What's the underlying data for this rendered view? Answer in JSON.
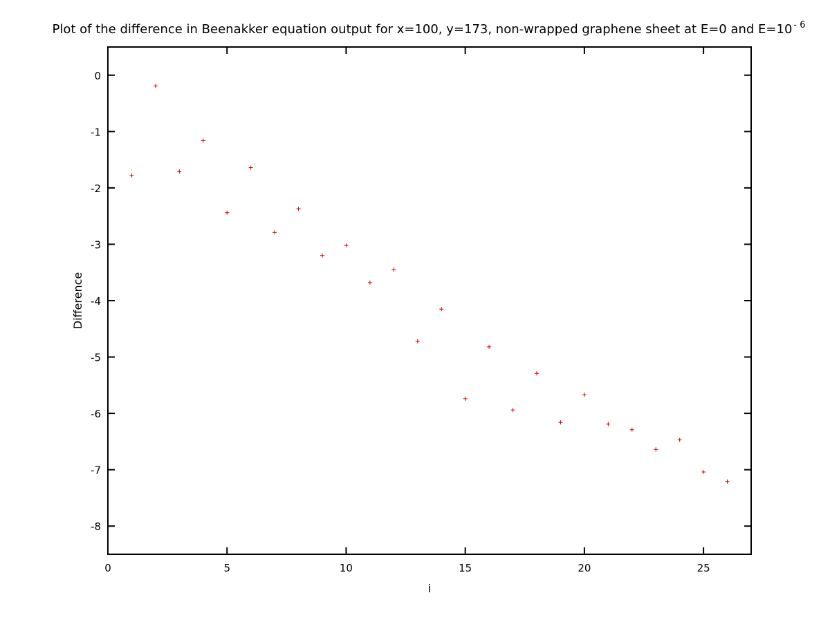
{
  "chart_data": {
    "type": "scatter",
    "title": "Plot of the difference in Beenakker equation output for x=100, y=173, non-wrapped graphene sheet at E=0 and E=10",
    "title_superscript": "- 6",
    "xlabel": "i",
    "ylabel": "Difference",
    "xlim": [
      0,
      27
    ],
    "ylim": [
      -8.5,
      0.5
    ],
    "xticks": [
      0,
      5,
      10,
      15,
      20,
      25
    ],
    "yticks": [
      0,
      -1,
      -2,
      -3,
      -4,
      -5,
      -6,
      -7,
      -8
    ],
    "grid": false,
    "marker_color": "#cc0000",
    "marker": "plus",
    "x": [
      1,
      2,
      3,
      4,
      5,
      6,
      7,
      8,
      9,
      10,
      11,
      12,
      13,
      14,
      15,
      16,
      17,
      18,
      19,
      20,
      21,
      22,
      23,
      24,
      25,
      26
    ],
    "y": [
      -1.78,
      -0.19,
      -1.71,
      -1.16,
      -2.44,
      -1.64,
      -2.79,
      -2.37,
      -3.2,
      -3.02,
      -3.68,
      -3.45,
      -4.72,
      -4.15,
      -5.74,
      -4.82,
      -5.94,
      -5.29,
      -6.16,
      -5.67,
      -6.19,
      -6.29,
      -6.64,
      -6.47,
      -7.04,
      -7.21
    ]
  }
}
